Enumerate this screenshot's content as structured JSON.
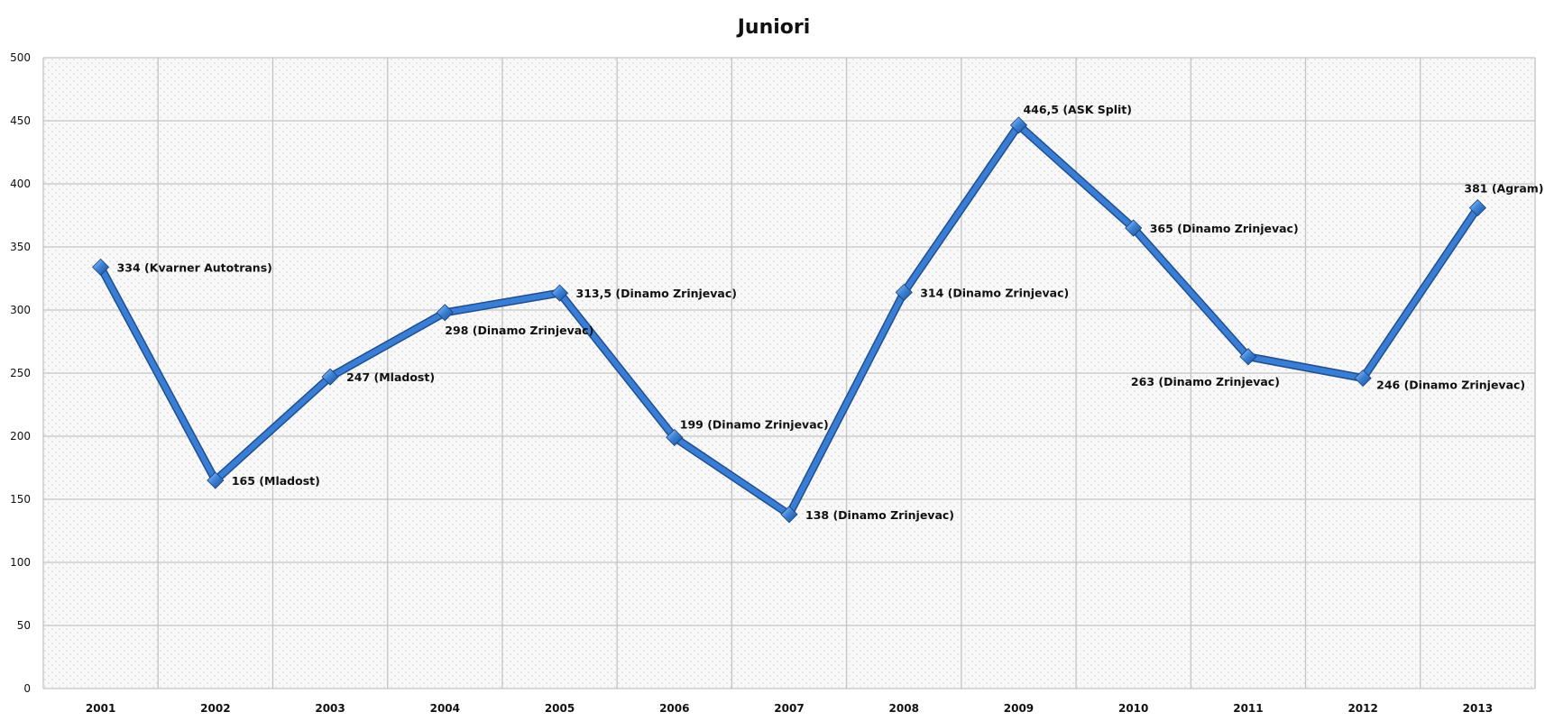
{
  "chart_data": {
    "type": "line",
    "title": "Juniori",
    "xlabel": "",
    "ylabel": "",
    "categories": [
      "2001",
      "2002",
      "2003",
      "2004",
      "2005",
      "2006",
      "2007",
      "2008",
      "2009",
      "2010",
      "2011",
      "2012",
      "2013"
    ],
    "series": [
      {
        "values": [
          334,
          165,
          247,
          298,
          313.5,
          199,
          138,
          314,
          446.5,
          365,
          263,
          246,
          381
        ],
        "labels": [
          "334 (Kvarner Autotrans)",
          "165 (Mladost)",
          "247 (Mladost)",
          "298 (Dinamo Zrinjevac)",
          "313,5 (Dinamo Zrinjevac)",
          "199 (Dinamo Zrinjevac)",
          "138 (Dinamo Zrinjevac)",
          "314 (Dinamo Zrinjevac)",
          "446,5 (ASK Split)",
          "365 (Dinamo Zrinjevac)",
          "263 (Dinamo Zrinjevac)",
          "246 (Dinamo Zrinjevac)",
          "381 (Agram)"
        ]
      }
    ],
    "ylim": [
      0,
      500
    ],
    "yticks": [
      "0",
      "50",
      "100",
      "150",
      "200",
      "250",
      "300",
      "350",
      "400",
      "450",
      "500"
    ],
    "grid": true,
    "legend": "none",
    "colors": {
      "line": "#3a7dd4",
      "line_shadow": "#1f4f8f",
      "marker": "#2f6fc8",
      "marker_highlight": "#9cc6f4",
      "grid": "#c4c4c4",
      "plot_background": "#f7f7f7"
    }
  }
}
